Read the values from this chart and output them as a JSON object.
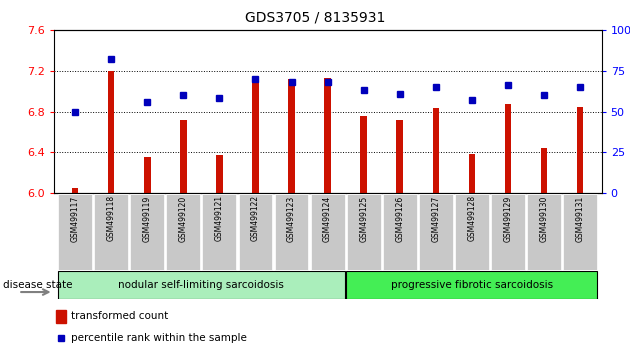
{
  "title": "GDS3705 / 8135931",
  "samples": [
    "GSM499117",
    "GSM499118",
    "GSM499119",
    "GSM499120",
    "GSM499121",
    "GSM499122",
    "GSM499123",
    "GSM499124",
    "GSM499125",
    "GSM499126",
    "GSM499127",
    "GSM499128",
    "GSM499129",
    "GSM499130",
    "GSM499131"
  ],
  "transformed_count": [
    6.05,
    7.2,
    6.35,
    6.72,
    6.37,
    7.14,
    7.12,
    7.13,
    6.76,
    6.72,
    6.83,
    6.38,
    6.87,
    6.44,
    6.84
  ],
  "percentile_rank": [
    50,
    82,
    56,
    60,
    58,
    70,
    68,
    68,
    63,
    61,
    65,
    57,
    66,
    60,
    65
  ],
  "ylim_left": [
    6.0,
    7.6
  ],
  "ylim_right": [
    0,
    100
  ],
  "yticks_left": [
    6.0,
    6.4,
    6.8,
    7.2,
    7.6
  ],
  "yticks_right": [
    0,
    25,
    50,
    75,
    100
  ],
  "bar_color": "#cc1100",
  "dot_color": "#0000bb",
  "group1_label": "nodular self-limiting sarcoidosis",
  "group1_indices": [
    0,
    7
  ],
  "group2_label": "progressive fibrotic sarcoidosis",
  "group2_indices": [
    8,
    14
  ],
  "group_color1": "#aaeebb",
  "group_color2": "#44ee55",
  "disease_state_label": "disease state",
  "legend_bar_label": "transformed count",
  "legend_dot_label": "percentile rank within the sample",
  "xticklabel_bg": "#c8c8c8",
  "bar_width": 0.18
}
